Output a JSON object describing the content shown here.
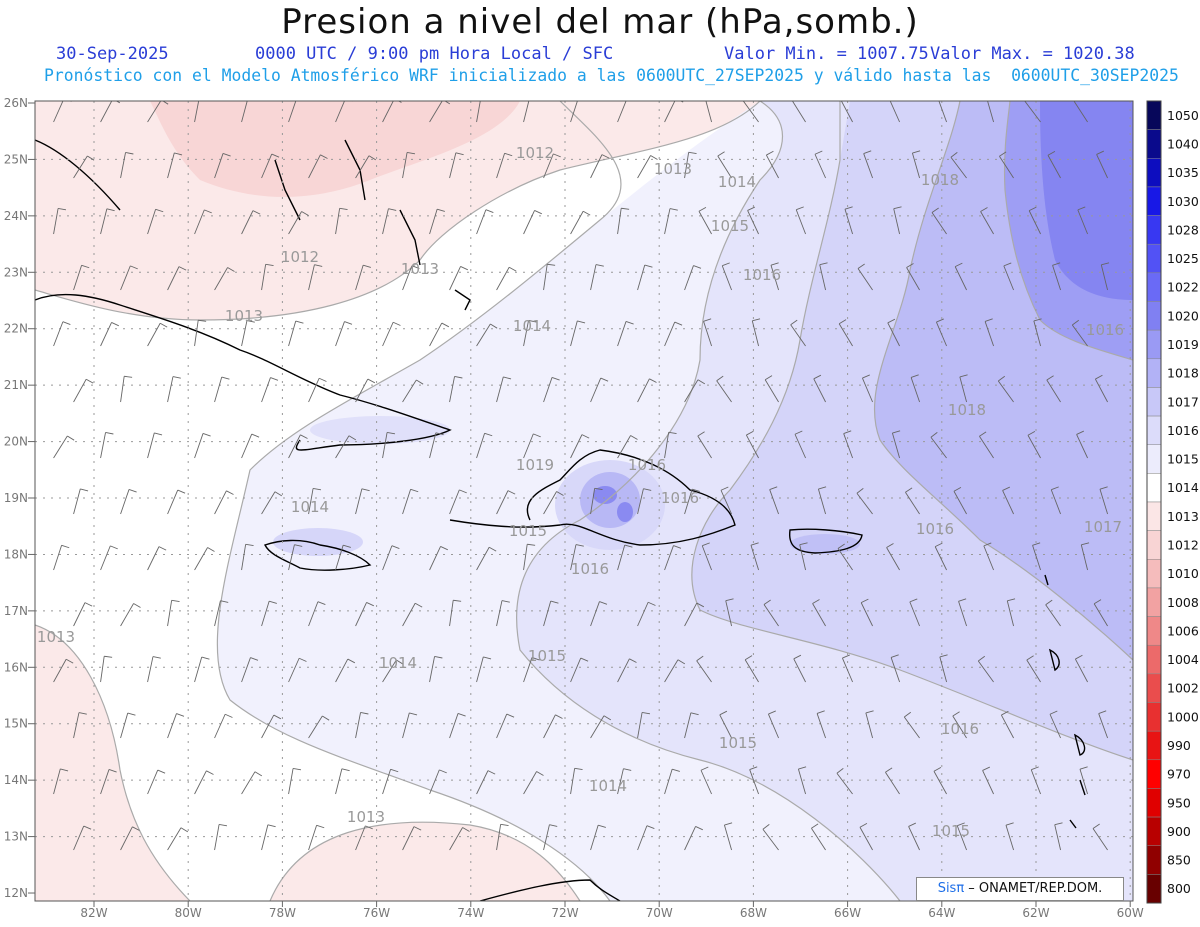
{
  "header": {
    "title": "Presion a nivel del mar (hPa,somb.)",
    "date": "30-Sep-2025",
    "time_info": "0000 UTC / 9:00 pm Hora Local / SFC",
    "valor_min": "Valor Min. = 1007.75",
    "valor_max": "Valor Max. = 1020.38",
    "forecast_line": "Pronóstico con el Modelo Atmosférico WRF inicializado a las 0600UTC_27SEP2025 y válido hasta las  0600UTC_30SEP2025"
  },
  "map": {
    "lat_labels": [
      "26N",
      "25N",
      "24N",
      "23N",
      "22N",
      "21N",
      "20N",
      "19N",
      "18N",
      "17N",
      "16N",
      "15N",
      "14N",
      "13N",
      "12N"
    ],
    "lon_labels": [
      "82W",
      "80W",
      "78W",
      "76W",
      "74W",
      "72W",
      "70W",
      "68W",
      "66W",
      "64W",
      "62W",
      "60W"
    ],
    "isobar_labels": [
      {
        "text": "1012"
      },
      {
        "text": "1013"
      },
      {
        "text": "1014"
      },
      {
        "text": "1015"
      },
      {
        "text": "1016"
      },
      {
        "text": "1018"
      },
      {
        "text": "1012"
      },
      {
        "text": "1013"
      },
      {
        "text": "1013"
      },
      {
        "text": "1014"
      },
      {
        "text": "1016"
      },
      {
        "text": "1018"
      },
      {
        "text": "1019"
      },
      {
        "text": "1016"
      },
      {
        "text": "1016"
      },
      {
        "text": "1016"
      },
      {
        "text": "1014"
      },
      {
        "text": "1015"
      },
      {
        "text": "1016"
      },
      {
        "text": "1017"
      },
      {
        "text": "1013"
      },
      {
        "text": "1014"
      },
      {
        "text": "1015"
      },
      {
        "text": "1015"
      },
      {
        "text": "1016"
      },
      {
        "text": "1014"
      },
      {
        "text": "1013"
      },
      {
        "text": "1015"
      }
    ]
  },
  "colorbar": {
    "labels": [
      "1050",
      "1040",
      "1035",
      "1030",
      "1028",
      "1025",
      "1022",
      "1020",
      "1019",
      "1018",
      "1017",
      "1016",
      "1015",
      "1014",
      "1013",
      "1012",
      "1010",
      "1008",
      "1006",
      "1004",
      "1002",
      "1000",
      "990",
      "970",
      "950",
      "900",
      "850",
      "800"
    ],
    "colors": [
      "#07075a",
      "#0a0a8c",
      "#0d0dbf",
      "#1818e6",
      "#3838f2",
      "#5252f5",
      "#6a6af6",
      "#8080f2",
      "#9a9af4",
      "#b2b2f6",
      "#c8c8f8",
      "#dcdcfa",
      "#ececfc",
      "#ffffff",
      "#fbe6e6",
      "#f8d4d4",
      "#f5bcbc",
      "#f2a2a2",
      "#ef8888",
      "#ec6a6a",
      "#ea4d4d",
      "#e83030",
      "#e81414",
      "#ff0000",
      "#e00000",
      "#b80000",
      "#900000",
      "#680000"
    ]
  },
  "credit": {
    "brand": "Sisπ",
    "text": " – ONAMET/REP.DOM."
  }
}
